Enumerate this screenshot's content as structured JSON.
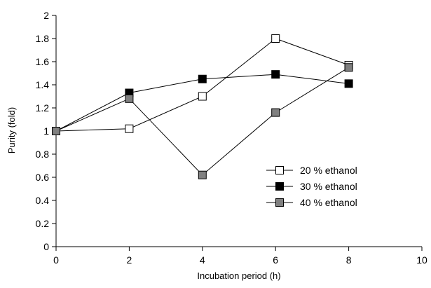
{
  "chart_data": {
    "type": "line",
    "title": "",
    "xlabel": "Incubation period (h)",
    "ylabel": "Purity (fold)",
    "xlim": [
      0,
      10
    ],
    "ylim": [
      0,
      2
    ],
    "xticks": [
      0,
      2,
      4,
      6,
      8,
      10
    ],
    "yticks": [
      0,
      0.2,
      0.4,
      0.6,
      0.8,
      1,
      1.2,
      1.4,
      1.6,
      1.8,
      2
    ],
    "grid": false,
    "legend_position": "right",
    "series": [
      {
        "name": "20 % ethanol",
        "marker": "square-open",
        "color": "#ffffff",
        "x": [
          0,
          2,
          4,
          6,
          8
        ],
        "y": [
          1.0,
          1.02,
          1.3,
          1.8,
          1.57
        ]
      },
      {
        "name": "30 % ethanol",
        "marker": "square-filled",
        "color": "#000000",
        "x": [
          0,
          2,
          4,
          6,
          8
        ],
        "y": [
          1.0,
          1.33,
          1.45,
          1.49,
          1.41
        ]
      },
      {
        "name": "40 % ethanol",
        "marker": "square-gray",
        "color": "#808080",
        "x": [
          0,
          2,
          4,
          6,
          8
        ],
        "y": [
          1.0,
          1.28,
          0.62,
          1.16,
          1.55
        ]
      }
    ]
  }
}
